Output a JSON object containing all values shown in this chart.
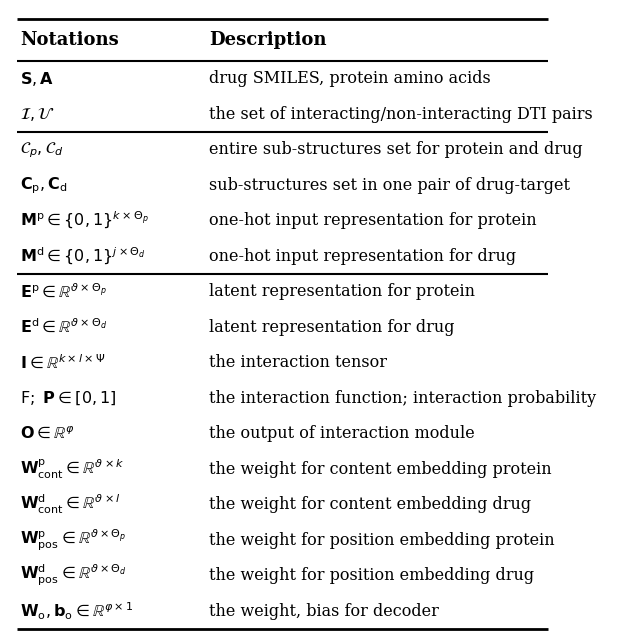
{
  "title_notation": "Notations",
  "title_description": "Description",
  "rows": [
    {
      "notation": "$\\mathbf{S}, \\mathbf{A}$",
      "description": "drug SMILES, protein amino acids",
      "group": 0
    },
    {
      "notation": "$\\mathcal{I}, \\mathcal{U}$",
      "description": "the set of interacting/non-interacting DTI pairs",
      "group": 0
    },
    {
      "notation": "$\\mathcal{C}_p, \\mathcal{C}_d$",
      "description": "entire sub-structures set for protein and drug",
      "group": 1
    },
    {
      "notation": "$\\mathbf{C}_{\\mathrm{p}}, \\mathbf{C}_{\\mathrm{d}}$",
      "description": "sub-structures set in one pair of drug-target",
      "group": 1
    },
    {
      "notation": "$\\mathbf{M}^{\\mathrm{p}} \\in \\{0,1\\}^{k \\times \\Theta_p}$",
      "description": "one-hot input representation for protein",
      "group": 1
    },
    {
      "notation": "$\\mathbf{M}^{\\mathrm{d}} \\in \\{0,1\\}^{j \\times \\Theta_d}$",
      "description": "one-hot input representation for drug",
      "group": 1
    },
    {
      "notation": "$\\mathbf{E}^{\\mathrm{p}} \\in \\mathbb{R}^{\\vartheta \\times \\Theta_p}$",
      "description": "latent representation for protein",
      "group": 2
    },
    {
      "notation": "$\\mathbf{E}^{\\mathrm{d}} \\in \\mathbb{R}^{\\vartheta \\times \\Theta_d}$",
      "description": "latent representation for drug",
      "group": 2
    },
    {
      "notation": "$\\mathbf{I} \\in \\mathbb{R}^{k \\times l \\times \\Psi}$",
      "description": "the interaction tensor",
      "group": 2
    },
    {
      "notation": "$\\mathrm{F};\\ \\mathbf{P} \\in [0,1]$",
      "description": "the interaction function; interaction probability",
      "group": 2
    },
    {
      "notation": "$\\mathbf{O} \\in \\mathbb{R}^{\\varphi}$",
      "description": "the output of interaction module",
      "group": 2
    },
    {
      "notation": "$\\mathbf{W}^{\\mathrm{p}}_{\\mathrm{cont}} \\in \\mathbb{R}^{\\vartheta \\times k}$",
      "description": "the weight for content embedding protein",
      "group": 2
    },
    {
      "notation": "$\\mathbf{W}^{\\mathrm{d}}_{\\mathrm{cont}} \\in \\mathbb{R}^{\\vartheta \\times l}$",
      "description": "the weight for content embedding drug",
      "group": 2
    },
    {
      "notation": "$\\mathbf{W}^{\\mathrm{p}}_{\\mathrm{pos}} \\in \\mathbb{R}^{\\vartheta \\times \\Theta_p}$",
      "description": "the weight for position embedding protein",
      "group": 2
    },
    {
      "notation": "$\\mathbf{W}^{\\mathrm{d}}_{\\mathrm{pos}} \\in \\mathbb{R}^{\\vartheta \\times \\Theta_d}$",
      "description": "the weight for position embedding drug",
      "group": 2
    },
    {
      "notation": "$\\mathbf{W}_{\\mathrm{o}}, \\mathbf{b}_{\\mathrm{o}} \\in \\mathbb{R}^{\\varphi \\times 1}$",
      "description": "the weight, bias for decoder",
      "group": 2
    }
  ],
  "col_split": 0.35,
  "bg_color": "#ffffff",
  "text_color": "#000000",
  "header_fontsize": 13,
  "row_fontsize": 11.5,
  "bold_header": true
}
